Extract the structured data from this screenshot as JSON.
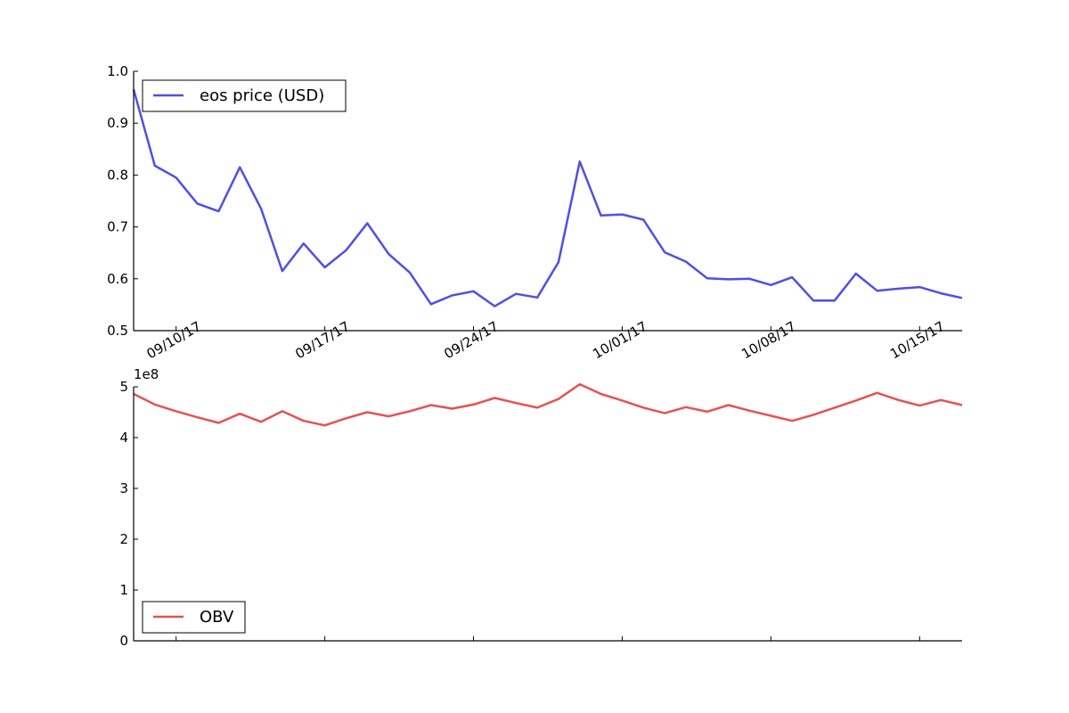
{
  "chart_data": [
    {
      "type": "line",
      "ylim": [
        0.5,
        1.0
      ],
      "yticks": [
        "0.5",
        "0.6",
        "0.7",
        "0.8",
        "0.9",
        "1.0"
      ],
      "xlim": [
        "2017-09-08",
        "2017-10-17"
      ],
      "xticks": [
        {
          "date": "2017-09-10",
          "label": "09/10/17"
        },
        {
          "date": "2017-09-17",
          "label": "09/17/17"
        },
        {
          "date": "2017-09-24",
          "label": "09/24/17"
        },
        {
          "date": "2017-10-01",
          "label": "10/01/17"
        },
        {
          "date": "2017-10-08",
          "label": "10/08/17"
        },
        {
          "date": "2017-10-15",
          "label": "10/15/17"
        }
      ],
      "legend_position": "upper-left",
      "grid": false,
      "series": [
        {
          "name": "eos price (USD)",
          "color": "#4f4fe6",
          "x": [
            "2017-09-08",
            "2017-09-09",
            "2017-09-10",
            "2017-09-11",
            "2017-09-12",
            "2017-09-13",
            "2017-09-14",
            "2017-09-15",
            "2017-09-16",
            "2017-09-17",
            "2017-09-18",
            "2017-09-19",
            "2017-09-20",
            "2017-09-21",
            "2017-09-22",
            "2017-09-23",
            "2017-09-24",
            "2017-09-25",
            "2017-09-26",
            "2017-09-27",
            "2017-09-28",
            "2017-09-29",
            "2017-09-30",
            "2017-10-01",
            "2017-10-02",
            "2017-10-03",
            "2017-10-04",
            "2017-10-05",
            "2017-10-06",
            "2017-10-07",
            "2017-10-08",
            "2017-10-09",
            "2017-10-10",
            "2017-10-11",
            "2017-10-12",
            "2017-10-13",
            "2017-10-14",
            "2017-10-15",
            "2017-10-16",
            "2017-10-17"
          ],
          "values": [
            0.965,
            0.818,
            0.795,
            0.745,
            0.73,
            0.815,
            0.735,
            0.615,
            0.668,
            0.622,
            0.655,
            0.707,
            0.648,
            0.612,
            0.551,
            0.568,
            0.576,
            0.547,
            0.571,
            0.564,
            0.632,
            0.826,
            0.722,
            0.724,
            0.714,
            0.651,
            0.633,
            0.601,
            0.599,
            0.6,
            0.588,
            0.603,
            0.558,
            0.558,
            0.61,
            0.577,
            0.581,
            0.584,
            0.572,
            0.563
          ]
        }
      ]
    },
    {
      "type": "line",
      "ylim": [
        0,
        5
      ],
      "yticks": [
        "0",
        "1",
        "2",
        "3",
        "4",
        "5"
      ],
      "y_offset_label": "1e8",
      "xlim": [
        "2017-09-08",
        "2017-10-17"
      ],
      "legend_position": "lower-left",
      "grid": false,
      "series": [
        {
          "name": "OBV",
          "color": "#e65252",
          "x": [
            "2017-09-08",
            "2017-09-09",
            "2017-09-10",
            "2017-09-11",
            "2017-09-12",
            "2017-09-13",
            "2017-09-14",
            "2017-09-15",
            "2017-09-16",
            "2017-09-17",
            "2017-09-18",
            "2017-09-19",
            "2017-09-20",
            "2017-09-21",
            "2017-09-22",
            "2017-09-23",
            "2017-09-24",
            "2017-09-25",
            "2017-09-26",
            "2017-09-27",
            "2017-09-28",
            "2017-09-29",
            "2017-09-30",
            "2017-10-01",
            "2017-10-02",
            "2017-10-03",
            "2017-10-04",
            "2017-10-05",
            "2017-10-06",
            "2017-10-07",
            "2017-10-08",
            "2017-10-09",
            "2017-10-10",
            "2017-10-11",
            "2017-10-12",
            "2017-10-13",
            "2017-10-14",
            "2017-10-15",
            "2017-10-16",
            "2017-10-17"
          ],
          "values": [
            4.86,
            4.65,
            4.52,
            4.4,
            4.29,
            4.47,
            4.31,
            4.52,
            4.33,
            4.24,
            4.38,
            4.5,
            4.42,
            4.52,
            4.64,
            4.57,
            4.65,
            4.78,
            4.68,
            4.59,
            4.76,
            5.05,
            4.86,
            4.73,
            4.59,
            4.48,
            4.6,
            4.51,
            4.64,
            4.53,
            4.43,
            4.33,
            4.45,
            4.59,
            4.73,
            4.88,
            4.74,
            4.63,
            4.74,
            4.64
          ]
        }
      ]
    }
  ]
}
